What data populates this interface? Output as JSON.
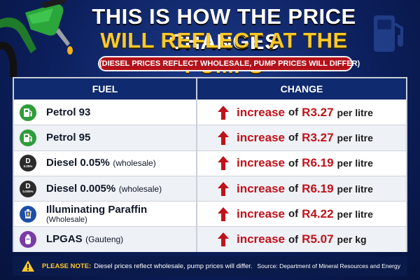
{
  "header": {
    "title_line1": "THIS IS HOW THE PRICE CHANGES",
    "title_line2": "WILL REFLECT AT THE PUMPS",
    "subtitle": "(DIESEL PRICES REFLECT WHOLESALE, PUMP PRICES WILL DIFFER)",
    "left_image": "fuel-nozzle-icon",
    "right_image": "fuel-pump-icon"
  },
  "table": {
    "col_fuel": "FUEL",
    "col_change": "CHANGE",
    "rows": [
      {
        "fuel": "Petrol 93",
        "note": "",
        "icon": "petrol-pump-icon",
        "badge_color": "#2e9d3a",
        "badge_text": "",
        "direction": "increase",
        "of": "of",
        "amount": "R3.27",
        "unit": "per litre"
      },
      {
        "fuel": "Petrol 95",
        "note": "",
        "icon": "petrol-pump-icon",
        "badge_color": "#2e9d3a",
        "badge_text": "",
        "direction": "increase",
        "of": "of",
        "amount": "R3.27",
        "unit": "per litre"
      },
      {
        "fuel": "Diesel 0.05%",
        "note": "(wholesale)",
        "icon": "diesel-badge-icon",
        "badge_color": "#2b2b2b",
        "badge_text": "D",
        "badge_sub": "0.05%",
        "direction": "increase",
        "of": "of",
        "amount": "R6.19",
        "unit": "per litre"
      },
      {
        "fuel": "Diesel 0.005%",
        "note": "(wholesale)",
        "icon": "diesel-badge-icon",
        "badge_color": "#2b2b2b",
        "badge_text": "D",
        "badge_sub": "0.005%",
        "direction": "increase",
        "of": "of",
        "amount": "R6.19",
        "unit": "per litre"
      },
      {
        "fuel": "Illuminating Paraffin",
        "note": "(Wholesale)",
        "icon": "lantern-icon",
        "badge_color": "#1d4fa8",
        "badge_text": "",
        "direction": "increase",
        "of": "of",
        "amount": "R4.22",
        "unit": "per litre"
      },
      {
        "fuel": "LPGAS",
        "note": "(Gauteng)",
        "icon": "gas-cylinder-icon",
        "badge_color": "#7a3aa8",
        "badge_text": "",
        "direction": "increase",
        "of": "of",
        "amount": "R5.07",
        "unit": "per kg"
      }
    ]
  },
  "footer": {
    "note_label": "PLEASE NOTE:",
    "note_text": "Diesel prices reflect wholesale, pump prices will differ.",
    "source": "Source: Department of Mineral Resources and Energy",
    "icon": "warning-icon"
  },
  "colors": {
    "accent_red": "#c0121b",
    "header_navy": "#0f2a6e",
    "title_yellow": "#ffc928"
  }
}
